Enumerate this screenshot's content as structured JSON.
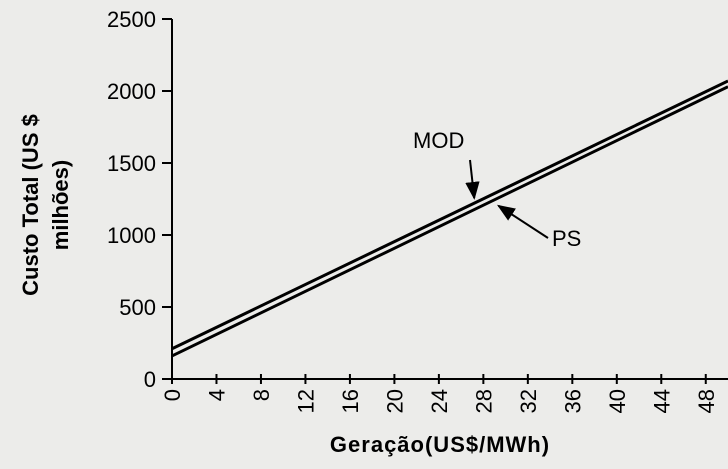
{
  "chart_data": {
    "type": "line",
    "x_label": "Geração(US$/MWh)",
    "y_label": [
      "Custo Total (US $",
      "milhões)"
    ],
    "x": [
      0,
      50
    ],
    "series": [
      {
        "name": "MOD",
        "color": "#000000",
        "values": [
          210,
          2070
        ]
      },
      {
        "name": "PS",
        "color": "#000000",
        "values": [
          160,
          2030
        ]
      }
    ],
    "xlim": [
      0,
      50
    ],
    "xticks": [
      0,
      4,
      8,
      12,
      16,
      20,
      24,
      28,
      32,
      36,
      40,
      44,
      48
    ],
    "ylim": [
      0,
      2500
    ],
    "yticks": [
      0,
      500,
      1000,
      1500,
      2000,
      2500
    ],
    "annotations": [
      {
        "text": "MOD",
        "series": 0
      },
      {
        "text": "PS",
        "series": 1
      }
    ]
  }
}
